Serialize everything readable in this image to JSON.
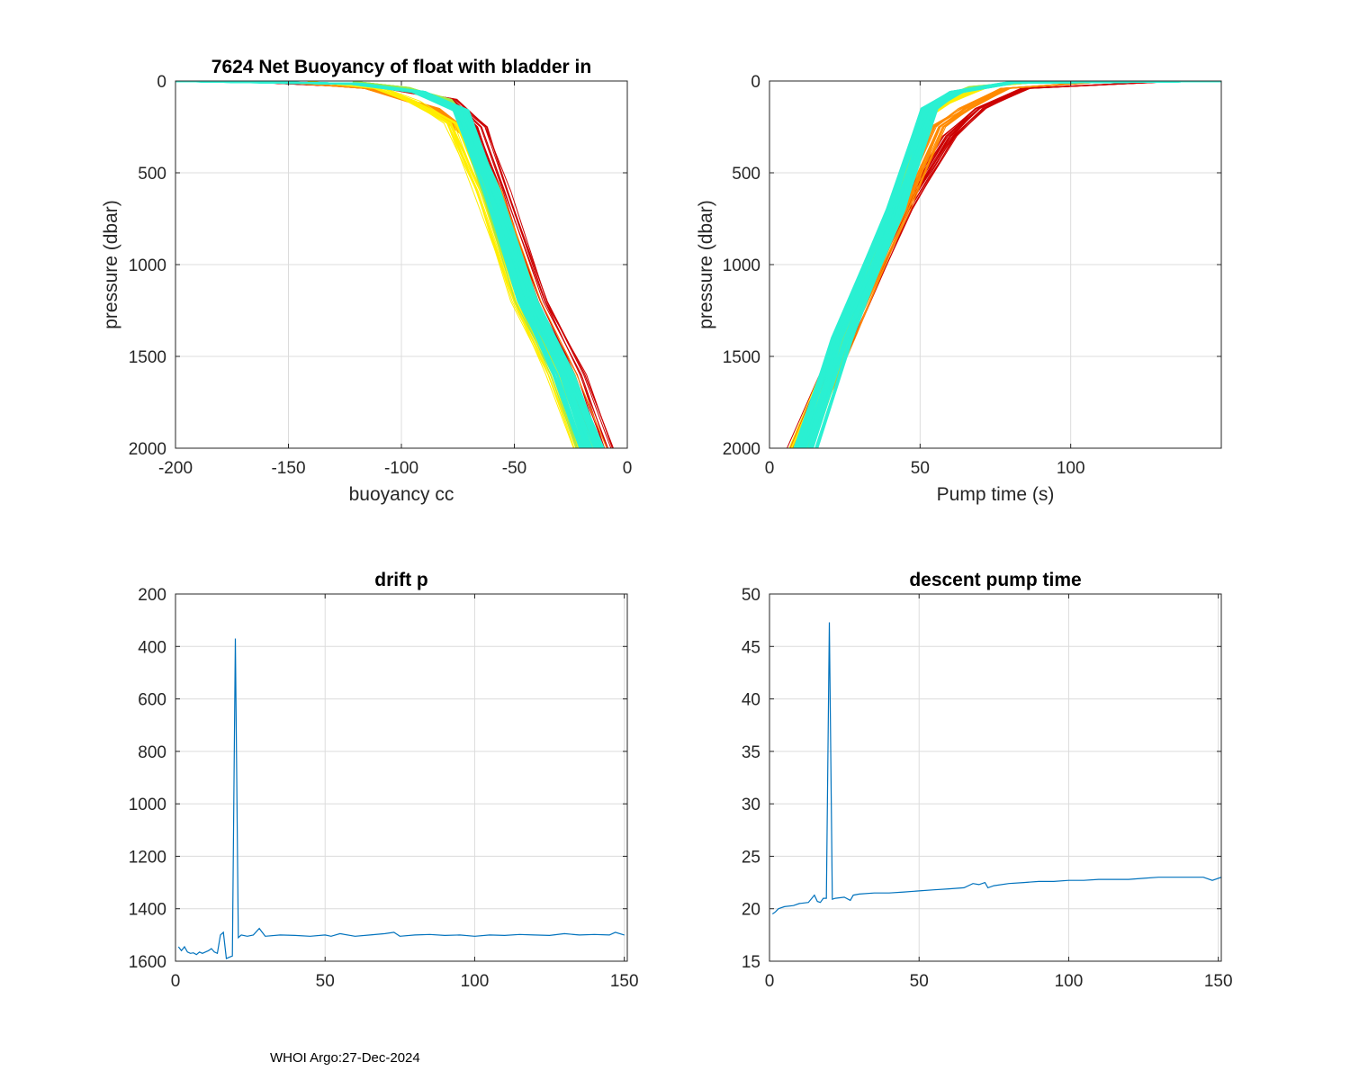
{
  "footer": "WHOI Argo:27-Dec-2024",
  "colors": {
    "red": "#cc0000",
    "orange": "#ff8a00",
    "yellow": "#ffee00",
    "green": "#9be84a",
    "cyan": "#2af0d2",
    "line": "#0072bd",
    "grid": "#dcdcdc",
    "axis": "#262626"
  },
  "chart_data": [
    {
      "id": "buoyancy",
      "type": "line",
      "title": "7624 Net Buoyancy of float with bladder in",
      "xlabel": "buoyancy cc",
      "ylabel": "pressure (dbar)",
      "xlim": [
        -200,
        0
      ],
      "ylim": [
        0,
        2000
      ],
      "y_reversed": true,
      "xticks": [
        -200,
        -150,
        -100,
        -50,
        0
      ],
      "yticks": [
        0,
        500,
        1000,
        1500,
        2000
      ],
      "series": [
        {
          "name": "early profiles (red)",
          "color": "#cc0000",
          "x": [
            -168,
            -105,
            -78,
            -65,
            -55,
            -38,
            -22,
            -10
          ],
          "y": [
            5,
            40,
            100,
            250,
            600,
            1200,
            1600,
            2000
          ]
        },
        {
          "name": "orange profiles",
          "color": "#ff8a00",
          "x": [
            -155,
            -115,
            -85,
            -70,
            -58,
            -42,
            -26,
            -14
          ],
          "y": [
            5,
            40,
            150,
            300,
            600,
            1200,
            1600,
            2000
          ]
        },
        {
          "name": "yellow profiles",
          "color": "#ffee00",
          "x": [
            -140,
            -110,
            -95,
            -78,
            -65,
            -48,
            -32,
            -20
          ],
          "y": [
            5,
            40,
            110,
            230,
            600,
            1200,
            1600,
            2000
          ]
        },
        {
          "name": "green profiles",
          "color": "#9be84a",
          "x": [
            -120,
            -98,
            -80,
            -74,
            -62,
            -46,
            -30,
            -18
          ],
          "y": [
            5,
            35,
            100,
            180,
            600,
            1200,
            1600,
            2000
          ]
        },
        {
          "name": "late profiles (cyan)",
          "color": "#2af0d2",
          "x": [
            -200,
            -120,
            -92,
            -74,
            -60,
            -44,
            -28,
            -16
          ],
          "y": [
            0,
            15,
            60,
            160,
            600,
            1200,
            1600,
            2000
          ]
        }
      ]
    },
    {
      "id": "pumptime",
      "type": "line",
      "title": "",
      "xlabel": "Pump time (s)",
      "ylabel": "pressure (dbar)",
      "xlim": [
        0,
        150
      ],
      "ylim": [
        0,
        2000
      ],
      "y_reversed": true,
      "xticks": [
        0,
        50,
        100
      ],
      "yticks": [
        0,
        500,
        1000,
        1500,
        2000
      ],
      "series": [
        {
          "name": "early profiles (red)",
          "color": "#cc0000",
          "x": [
            130,
            85,
            70,
            60,
            45,
            25,
            9
          ],
          "y": [
            5,
            40,
            150,
            300,
            700,
            1400,
            2000
          ]
        },
        {
          "name": "orange profiles",
          "color": "#ff8a00",
          "x": [
            110,
            78,
            65,
            56,
            44,
            25,
            10
          ],
          "y": [
            5,
            40,
            150,
            250,
            700,
            1400,
            2000
          ]
        },
        {
          "name": "yellow profiles",
          "color": "#ffee00",
          "x": [
            90,
            72,
            58,
            53,
            42,
            24,
            10
          ],
          "y": [
            5,
            30,
            120,
            180,
            700,
            1400,
            2000
          ]
        },
        {
          "name": "green profiles",
          "color": "#9be84a",
          "x": [
            85,
            68,
            57,
            52,
            42,
            24,
            11
          ],
          "y": [
            5,
            30,
            100,
            160,
            700,
            1400,
            2000
          ]
        },
        {
          "name": "late profiles (cyan)",
          "color": "#2af0d2",
          "x": [
            150,
            80,
            62,
            53,
            42,
            24,
            12
          ],
          "y": [
            0,
            10,
            60,
            150,
            700,
            1400,
            2000
          ]
        }
      ]
    },
    {
      "id": "driftp",
      "type": "line",
      "title": "drift p",
      "xlabel": "",
      "ylabel": "",
      "xlim": [
        0,
        151
      ],
      "ylim": [
        200,
        1600
      ],
      "y_reversed": true,
      "xticks": [
        0,
        50,
        100,
        150
      ],
      "yticks": [
        200,
        400,
        600,
        800,
        1000,
        1200,
        1400,
        1600
      ],
      "series": [
        {
          "name": "drift pressure",
          "color": "#0072bd",
          "x": [
            1,
            2,
            3,
            4,
            5,
            6,
            7,
            8,
            9,
            10,
            11,
            12,
            13,
            14,
            15,
            16,
            17,
            18,
            19,
            20,
            21,
            22,
            24,
            26,
            28,
            30,
            35,
            40,
            45,
            50,
            52,
            55,
            60,
            65,
            70,
            73,
            75,
            80,
            85,
            90,
            95,
            100,
            105,
            110,
            115,
            120,
            125,
            130,
            135,
            140,
            145,
            147,
            150
          ],
          "y": [
            1545,
            1560,
            1545,
            1565,
            1570,
            1568,
            1575,
            1565,
            1570,
            1565,
            1560,
            1552,
            1565,
            1570,
            1500,
            1490,
            1590,
            1585,
            1580,
            370,
            1510,
            1500,
            1505,
            1500,
            1475,
            1505,
            1500,
            1502,
            1505,
            1500,
            1505,
            1495,
            1505,
            1500,
            1495,
            1490,
            1505,
            1500,
            1498,
            1502,
            1500,
            1505,
            1500,
            1502,
            1498,
            1500,
            1502,
            1495,
            1500,
            1498,
            1500,
            1490,
            1500
          ]
        }
      ]
    },
    {
      "id": "descentpump",
      "type": "line",
      "title": "descent pump time",
      "xlabel": "",
      "ylabel": "",
      "xlim": [
        0,
        151
      ],
      "ylim": [
        15,
        50
      ],
      "y_reversed": false,
      "xticks": [
        0,
        50,
        100,
        150
      ],
      "yticks": [
        15,
        20,
        25,
        30,
        35,
        40,
        45,
        50
      ],
      "series": [
        {
          "name": "descent pump time",
          "color": "#0072bd",
          "x": [
            1,
            2,
            3,
            5,
            8,
            10,
            13,
            15,
            16,
            17,
            18,
            19,
            20,
            21,
            22,
            25,
            27,
            28,
            30,
            35,
            40,
            45,
            50,
            55,
            60,
            65,
            68,
            70,
            72,
            73,
            75,
            80,
            85,
            90,
            95,
            100,
            105,
            110,
            115,
            120,
            125,
            130,
            135,
            140,
            145,
            148,
            151
          ],
          "y": [
            19.5,
            19.7,
            20.0,
            20.2,
            20.3,
            20.5,
            20.6,
            21.3,
            20.7,
            20.6,
            21.0,
            21.0,
            47.3,
            20.9,
            21.0,
            21.1,
            20.8,
            21.3,
            21.4,
            21.5,
            21.5,
            21.6,
            21.7,
            21.8,
            21.9,
            22.0,
            22.4,
            22.3,
            22.5,
            22.0,
            22.2,
            22.4,
            22.5,
            22.6,
            22.6,
            22.7,
            22.7,
            22.8,
            22.8,
            22.8,
            22.9,
            23.0,
            23.0,
            23.0,
            23.0,
            22.7,
            23.0
          ]
        }
      ]
    }
  ]
}
